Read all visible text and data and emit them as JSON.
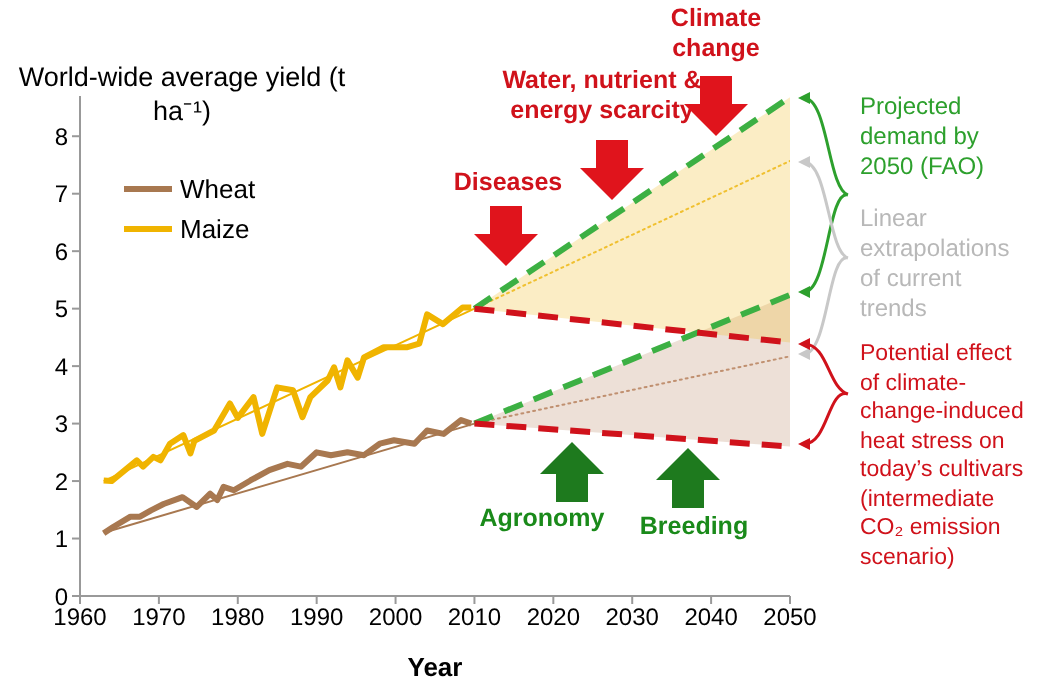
{
  "chart_data": {
    "type": "line",
    "ylabel": "World-wide average yield (t ha⁻¹)",
    "xlabel": "Year",
    "xlim": [
      1960,
      2050
    ],
    "xticks": [
      1960,
      1970,
      1980,
      1990,
      2000,
      2010,
      2020,
      2030,
      2040,
      2050
    ],
    "ylim": [
      0,
      8.7
    ],
    "yticks": [
      0,
      1,
      2,
      3,
      4,
      5,
      6,
      7,
      8
    ],
    "grid": false,
    "legend": "top left",
    "marker": "none",
    "annotations": [
      "Diseases",
      "Water, nutrient & energy scarcity",
      "Climate change",
      "Agronomy",
      "Breeding",
      "Projected demand by 2050 (FAO)",
      "Linear extrapolations of current trends",
      "Potential effect of climate-change-induced heat stress on today’s cultivars (intermediate CO₂ emission scenario)"
    ],
    "series": [
      {
        "name": "Wheat",
        "color": "#a87850",
        "line_style": "solid",
        "x": [
          1963,
          1964.2,
          1966.4,
          1967.6,
          1969,
          1970.6,
          1973,
          1974.8,
          1976.5,
          1977.4,
          1978.2,
          1979.5,
          1981.6,
          1984,
          1986.3,
          1988,
          1990,
          1991.8,
          1993.9,
          1996,
          1998,
          1999.8,
          2002.4,
          2004,
          2006.1,
          2008.3,
          2009.6
        ],
        "values": [
          1.09,
          1.2,
          1.38,
          1.38,
          1.49,
          1.6,
          1.72,
          1.55,
          1.78,
          1.67,
          1.9,
          1.84,
          2.01,
          2.19,
          2.3,
          2.25,
          2.5,
          2.45,
          2.5,
          2.45,
          2.65,
          2.71,
          2.65,
          2.88,
          2.82,
          3.06,
          3.0
        ]
      },
      {
        "name": "Maize",
        "color": "#f0b400",
        "line_style": "solid",
        "x": [
          1963,
          1964,
          1967.2,
          1968,
          1969.3,
          1970.2,
          1971.4,
          1973.1,
          1974,
          1974.5,
          1977,
          1979,
          1980,
          1982,
          1983.1,
          1985,
          1987,
          1988.2,
          1989.2,
          1991.4,
          1992.2,
          1993,
          1993.9,
          1995.2,
          1996,
          1998.5,
          1999.8,
          2001.5,
          2003,
          2004,
          2006,
          2008.5,
          2009.6
        ],
        "values": [
          2.01,
          2.0,
          2.36,
          2.25,
          2.42,
          2.36,
          2.65,
          2.8,
          2.48,
          2.7,
          2.88,
          3.35,
          3.1,
          3.46,
          2.82,
          3.63,
          3.58,
          3.11,
          3.46,
          3.75,
          3.98,
          3.63,
          4.1,
          3.8,
          4.15,
          4.33,
          4.33,
          4.33,
          4.39,
          4.9,
          4.73,
          5.02,
          5.02
        ]
      },
      {
        "type": "line",
        "color": "#a87850",
        "line_style": "solid",
        "x": [
          1963,
          2010
        ],
        "values": [
          1.1,
          3.0
        ]
      },
      {
        "type": "line",
        "color": "#f0b400",
        "line_style": "solid",
        "x": [
          1963,
          2010
        ],
        "values": [
          2.0,
          5.0
        ]
      },
      {
        "type": "line",
        "color": "#c09070",
        "line_style": "dotted",
        "x": [
          2010,
          2050
        ],
        "values": [
          3.0,
          4.17
        ],
        "lower": [
          3.0,
          2.6
        ],
        "upper": [
          3.0,
          5.24
        ]
      },
      {
        "type": "line",
        "color": "#f0c030",
        "line_style": "dotted",
        "x": [
          2010,
          2050
        ],
        "values": [
          5.0,
          7.57
        ],
        "lower": [
          5.0,
          4.41
        ],
        "upper": [
          5.0,
          8.68
        ]
      },
      {
        "type": "line",
        "color": "#3cb043",
        "line_style": "dashed",
        "x": [
          2010,
          2050
        ],
        "values": [
          5.0,
          8.68
        ]
      },
      {
        "type": "line",
        "color": "#3cb043",
        "line_style": "dashed",
        "x": [
          2010,
          2050
        ],
        "values": [
          3.0,
          5.24
        ]
      },
      {
        "type": "line",
        "color": "#d0121b",
        "line_style": "dashed",
        "x": [
          2010,
          2050
        ],
        "values": [
          5.0,
          4.41
        ]
      },
      {
        "type": "line",
        "color": "#d0121b",
        "line_style": "dashed",
        "x": [
          2010,
          2050
        ],
        "values": [
          3.0,
          2.6
        ]
      }
    ]
  }
}
